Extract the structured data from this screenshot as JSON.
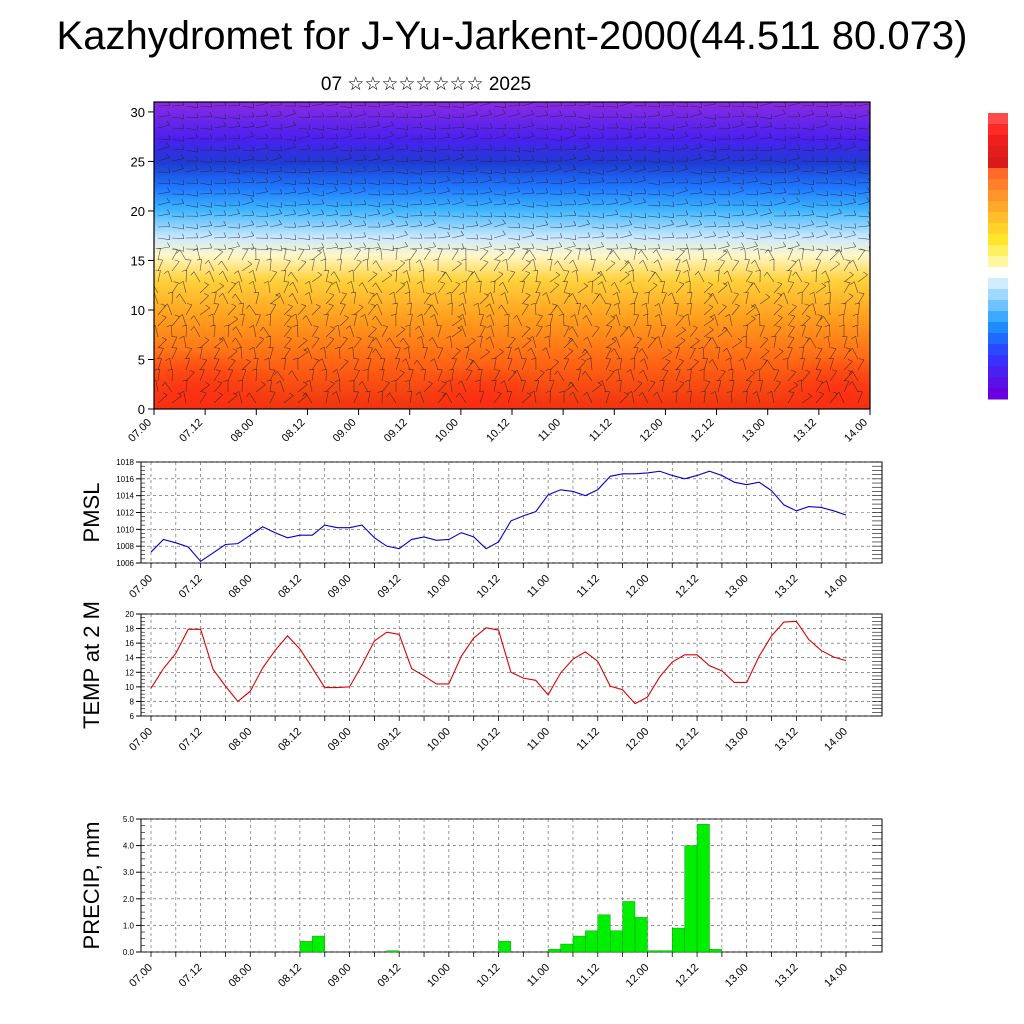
{
  "page": {
    "title": "Kazhydromet for J-Yu-Jarkent-2000(44.511 80.073)",
    "subtitle": "07 ☆☆☆☆☆☆☆☆ 2025"
  },
  "chart_data": [
    {
      "type": "heatmap",
      "name": "cross-section",
      "x_ticks": [
        "07.00",
        "07.12",
        "08.00",
        "08.12",
        "09.00",
        "09.12",
        "10.00",
        "10.12",
        "11.00",
        "11.12",
        "12.00",
        "12.12",
        "13.00",
        "13.12",
        "14.00"
      ],
      "y_ticks": [
        0,
        5,
        10,
        15,
        20,
        25,
        30
      ],
      "ylim": [
        0,
        31
      ],
      "colorbar": {
        "colors": [
          "#ff4a4a",
          "#ff2a2a",
          "#f01e1e",
          "#e31c1c",
          "#d81a1a",
          "#ff6a2a",
          "#ff7f2a",
          "#ff942a",
          "#ffa92a",
          "#ffbe2a",
          "#ffd32a",
          "#ffe62a",
          "#fff060",
          "#fff8a0",
          "#ffffff",
          "#d2ecff",
          "#a0d8ff",
          "#6ec2ff",
          "#3caaff",
          "#1e8cff",
          "#1e6aff",
          "#2a4aff",
          "#3a30ff",
          "#4a20f0",
          "#5a10e8",
          "#6a00e0"
        ]
      }
    },
    {
      "type": "line",
      "name": "pmsl",
      "ylabel": "PMSL",
      "color": "#0000cc",
      "x_ticks": [
        "07.00",
        "07.12",
        "08.00",
        "08.12",
        "09.00",
        "09.12",
        "10.00",
        "10.12",
        "11.00",
        "11.12",
        "12.00",
        "12.12",
        "13.00",
        "13.12",
        "14.00"
      ],
      "y_ticks": [
        1006,
        1008,
        1010,
        1012,
        1014,
        1016,
        1018
      ],
      "ylim": [
        1006,
        1018
      ],
      "x": [
        0,
        3,
        6,
        9,
        12,
        15,
        18,
        21,
        24,
        27,
        30,
        33,
        36,
        39,
        42,
        45,
        48,
        51,
        54,
        57,
        60,
        63,
        66,
        69,
        72,
        75,
        78,
        81,
        84,
        87,
        90,
        93,
        96,
        99,
        102,
        105,
        108,
        111,
        114,
        117,
        120,
        123,
        126,
        129,
        132,
        135,
        138,
        141,
        144,
        147,
        150,
        153,
        156,
        159,
        162,
        165,
        168
      ],
      "values": [
        1007.3,
        1008.8,
        1008.4,
        1007.9,
        1006.2,
        1007.2,
        1008.2,
        1008.3,
        1009.3,
        1010.3,
        1009.6,
        1009.0,
        1009.3,
        1009.3,
        1010.5,
        1010.2,
        1010.2,
        1010.5,
        1009.0,
        1008.0,
        1007.7,
        1008.8,
        1009.1,
        1008.7,
        1008.8,
        1009.6,
        1009.1,
        1007.7,
        1008.5,
        1011.0,
        1011.6,
        1012.1,
        1014.1,
        1014.7,
        1014.5,
        1014.0,
        1014.7,
        1016.3,
        1016.6,
        1016.6,
        1016.7,
        1016.9,
        1016.4,
        1016.0,
        1016.4,
        1016.9,
        1016.4,
        1015.6,
        1015.3,
        1015.6,
        1014.6,
        1012.9,
        1012.2,
        1012.7,
        1012.6,
        1012.2,
        1011.7
      ]
    },
    {
      "type": "line",
      "name": "temp",
      "ylabel": "TEMP at 2 M",
      "color": "#dd0000",
      "x_ticks": [
        "07.00",
        "07.12",
        "08.00",
        "08.12",
        "09.00",
        "09.12",
        "10.00",
        "10.12",
        "11.00",
        "11.12",
        "12.00",
        "12.12",
        "13.00",
        "13.12",
        "14.00"
      ],
      "y_ticks": [
        6,
        8,
        10,
        12,
        14,
        16,
        18,
        20
      ],
      "ylim": [
        6,
        20
      ],
      "x": [
        0,
        3,
        6,
        9,
        12,
        15,
        18,
        21,
        24,
        27,
        30,
        33,
        36,
        39,
        42,
        45,
        48,
        51,
        54,
        57,
        60,
        63,
        66,
        69,
        72,
        75,
        78,
        81,
        84,
        87,
        90,
        93,
        96,
        99,
        102,
        105,
        108,
        111,
        114,
        117,
        120,
        123,
        126,
        129,
        132,
        135,
        138,
        141,
        144,
        147,
        150,
        153,
        156,
        159,
        162,
        165,
        168
      ],
      "values": [
        9.8,
        12.5,
        14.6,
        17.9,
        17.9,
        12.4,
        10.1,
        8.0,
        9.4,
        12.6,
        15.0,
        17.0,
        15.2,
        12.6,
        9.9,
        9.9,
        10.0,
        13.0,
        16.3,
        17.5,
        17.2,
        12.5,
        11.5,
        10.4,
        10.4,
        14.2,
        16.7,
        18.1,
        17.8,
        12.0,
        11.2,
        10.9,
        8.9,
        11.9,
        13.8,
        14.8,
        13.5,
        10.1,
        9.6,
        7.7,
        8.6,
        11.4,
        13.4,
        14.4,
        14.4,
        12.9,
        12.2,
        10.6,
        10.6,
        14.2,
        17.0,
        18.9,
        19.0,
        16.5,
        15.0,
        14.1,
        13.6
      ]
    },
    {
      "type": "bar",
      "name": "precip",
      "ylabel": "PRECIP, mm",
      "color": "#00ee00",
      "x_ticks": [
        "07.00",
        "07.12",
        "08.00",
        "08.12",
        "09.00",
        "09.12",
        "10.00",
        "10.12",
        "11.00",
        "11.12",
        "12.00",
        "12.12",
        "13.00",
        "13.12",
        "14.00"
      ],
      "y_ticks": [
        "0.0",
        "1.0",
        "2.0",
        "3.0",
        "4.0",
        "5.0"
      ],
      "ylim": [
        0,
        5
      ],
      "x": [
        0,
        3,
        6,
        9,
        12,
        15,
        18,
        21,
        24,
        27,
        30,
        33,
        36,
        39,
        42,
        45,
        48,
        51,
        54,
        57,
        60,
        63,
        66,
        69,
        72,
        75,
        78,
        81,
        84,
        87,
        90,
        93,
        96,
        99,
        102,
        105,
        108,
        111,
        114,
        117,
        120,
        123,
        126,
        129,
        132,
        135,
        138,
        141,
        144,
        147,
        150,
        153,
        156,
        159,
        162,
        165
      ],
      "values": [
        0,
        0,
        0,
        0,
        0,
        0,
        0,
        0,
        0,
        0,
        0,
        0,
        0.4,
        0.6,
        0,
        0,
        0,
        0,
        0,
        0.05,
        0,
        0,
        0,
        0,
        0,
        0,
        0,
        0,
        0.4,
        0,
        0,
        0,
        0.1,
        0.3,
        0.6,
        0.8,
        1.4,
        0.8,
        1.9,
        1.3,
        0.05,
        0.05,
        0.9,
        4.0,
        4.8,
        0.1,
        0,
        0,
        0,
        0,
        0,
        0,
        0,
        0,
        0,
        0
      ]
    }
  ]
}
